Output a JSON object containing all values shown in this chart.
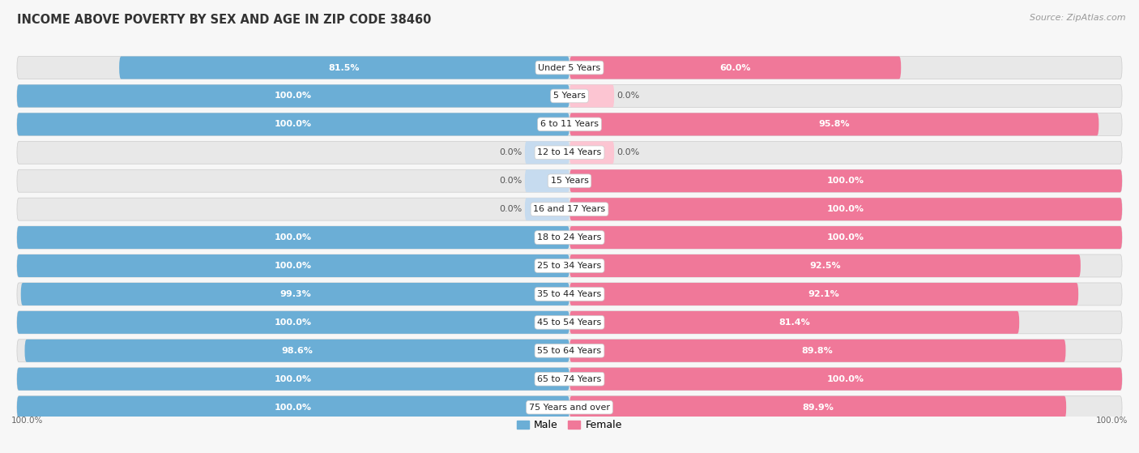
{
  "title": "INCOME ABOVE POVERTY BY SEX AND AGE IN ZIP CODE 38460",
  "source": "Source: ZipAtlas.com",
  "categories": [
    "Under 5 Years",
    "5 Years",
    "6 to 11 Years",
    "12 to 14 Years",
    "15 Years",
    "16 and 17 Years",
    "18 to 24 Years",
    "25 to 34 Years",
    "35 to 44 Years",
    "45 to 54 Years",
    "55 to 64 Years",
    "65 to 74 Years",
    "75 Years and over"
  ],
  "male_values": [
    81.5,
    100.0,
    100.0,
    0.0,
    0.0,
    0.0,
    100.0,
    100.0,
    99.3,
    100.0,
    98.6,
    100.0,
    100.0
  ],
  "female_values": [
    60.0,
    0.0,
    95.8,
    0.0,
    100.0,
    100.0,
    100.0,
    92.5,
    92.1,
    81.4,
    89.8,
    100.0,
    89.9
  ],
  "male_color": "#6baed6",
  "female_color": "#f07899",
  "male_light_color": "#c6dbef",
  "female_light_color": "#fcc5d2",
  "row_bg_color": "#e8e8e8",
  "background_color": "#f7f7f7",
  "title_fontsize": 10.5,
  "source_fontsize": 8,
  "label_fontsize": 8,
  "category_fontsize": 8,
  "legend_labels": [
    "Male",
    "Female"
  ]
}
